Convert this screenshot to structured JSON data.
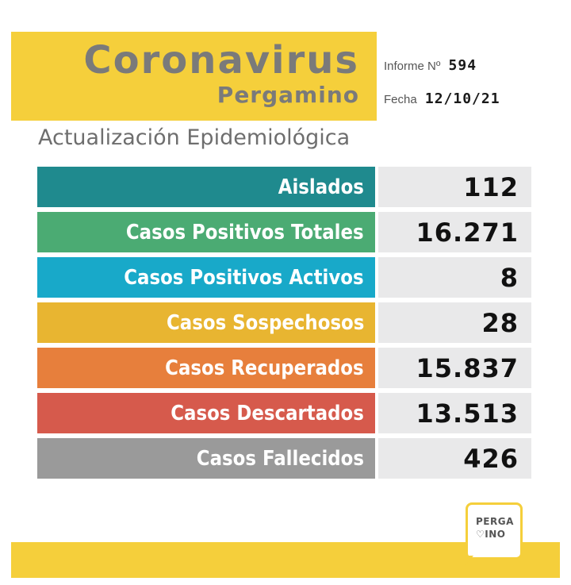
{
  "header": {
    "title": "Coronavirus",
    "subtitle": "Pergamino",
    "informe_label": "Informe Nº",
    "informe_value": "594",
    "fecha_label": "Fecha",
    "fecha_value": "12/10/21"
  },
  "section_title": "Actualización Epidemiológica",
  "rows": [
    {
      "label": "Aislados",
      "value": "112",
      "color": "#1f8a8e"
    },
    {
      "label": "Casos Positivos Totales",
      "value": "16.271",
      "color": "#4bab73"
    },
    {
      "label": "Casos Positivos Activos",
      "value": "8",
      "color": "#18a9c9"
    },
    {
      "label": "Casos Sospechosos",
      "value": "28",
      "color": "#e8b531"
    },
    {
      "label": "Casos Recuperados",
      "value": "15.837",
      "color": "#e77f3c"
    },
    {
      "label": "Casos Descartados",
      "value": "13.513",
      "color": "#d65a4c"
    },
    {
      "label": "Casos Fallecidos",
      "value": "426",
      "color": "#9a9a9a"
    }
  ],
  "logo": {
    "line1": "PERGA",
    "line2": "♡INO"
  },
  "colors": {
    "accent": "#f5cf3b",
    "title_gray": "#7a7a7a"
  }
}
